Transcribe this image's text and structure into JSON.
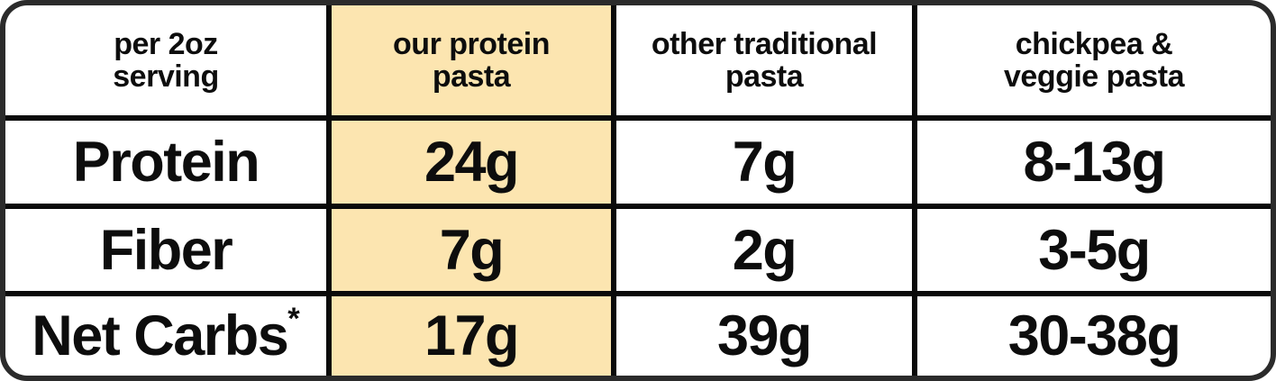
{
  "chart_data": {
    "type": "table",
    "title": "",
    "columns": [
      "per 2oz serving",
      "our protein pasta",
      "other traditional pasta",
      "chickpea & veggie pasta"
    ],
    "rows": [
      [
        "Protein",
        "24g",
        "7g",
        "8-13g"
      ],
      [
        "Fiber",
        "7g",
        "2g",
        "3-5g"
      ],
      [
        "Net Carbs*",
        "17g",
        "39g",
        "30-38g"
      ]
    ],
    "highlighted_column": "our protein pasta",
    "highlight_color": "#FCE5B0",
    "border_color": "#2b2b2b",
    "grid": "on"
  },
  "table": {
    "highlight_color": "#FCE5B0",
    "border_color": "#2b2b2b",
    "columns": [
      {
        "header_line1": "per 2oz",
        "header_line2": "serving"
      },
      {
        "header_line1": "our protein",
        "header_line2": "pasta"
      },
      {
        "header_line1": "other traditional",
        "header_line2": "pasta"
      },
      {
        "header_line1": "chickpea &",
        "header_line2": "veggie pasta"
      }
    ],
    "rows": [
      {
        "label": "Protein",
        "label_suffix": "",
        "our": "24g",
        "traditional": "7g",
        "chickpea": "8-13g"
      },
      {
        "label": "Fiber",
        "label_suffix": "",
        "our": "7g",
        "traditional": "2g",
        "chickpea": "3-5g"
      },
      {
        "label": "Net Carbs",
        "label_suffix": "*",
        "our": "17g",
        "traditional": "39g",
        "chickpea": "30-38g"
      }
    ]
  }
}
